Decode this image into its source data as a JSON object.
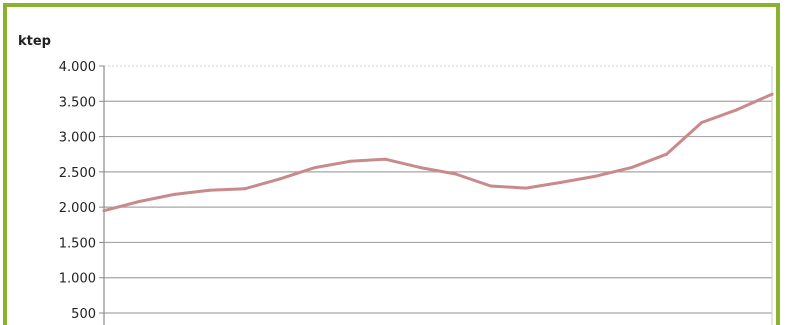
{
  "chart_data": {
    "type": "line",
    "title": "",
    "xlabel": "",
    "ylabel": "ktep",
    "ylim": [
      500,
      4000
    ],
    "yticks": [
      500,
      1000,
      1500,
      2000,
      2500,
      3000,
      3500,
      4000
    ],
    "ytick_labels": [
      "500",
      "1.000",
      "1.500",
      "2.000",
      "2.500",
      "3.000",
      "3.500",
      "4.000"
    ],
    "grid": true,
    "legend": "none",
    "series": [
      {
        "color": "#c98a8c",
        "values": [
          1950,
          2080,
          2180,
          2240,
          2260,
          2400,
          2560,
          2650,
          2680,
          2560,
          2470,
          2300,
          2270,
          2350,
          2440,
          2560,
          2750,
          3200,
          3380,
          3600
        ]
      }
    ],
    "colors": {
      "frame": "#8ab22e",
      "grid": "#a6a6a6",
      "axis": "#8c8c8c"
    }
  }
}
